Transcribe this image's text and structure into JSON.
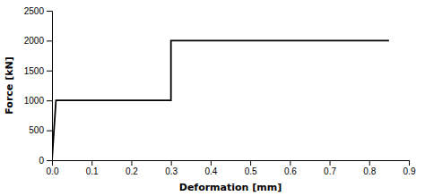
{
  "chart_data": {
    "type": "line",
    "x": [
      0,
      0.01,
      0.01,
      0.3,
      0.3,
      0.85
    ],
    "values": [
      0,
      1000,
      1000,
      1000,
      2000,
      2000
    ],
    "color": "#000000",
    "xlabel": "Deformation [mm]",
    "ylabel": "Force [kN]",
    "xlim": [
      0,
      0.9
    ],
    "ylim": [
      0,
      2500
    ],
    "xticks": [
      {
        "value": 0,
        "label": "0.0"
      },
      0.1,
      0.2,
      0.3,
      0.4,
      0.5,
      0.6,
      0.7,
      0.8,
      0.9
    ],
    "yticks": [
      0,
      500,
      1000,
      1500,
      2000,
      2500
    ]
  }
}
